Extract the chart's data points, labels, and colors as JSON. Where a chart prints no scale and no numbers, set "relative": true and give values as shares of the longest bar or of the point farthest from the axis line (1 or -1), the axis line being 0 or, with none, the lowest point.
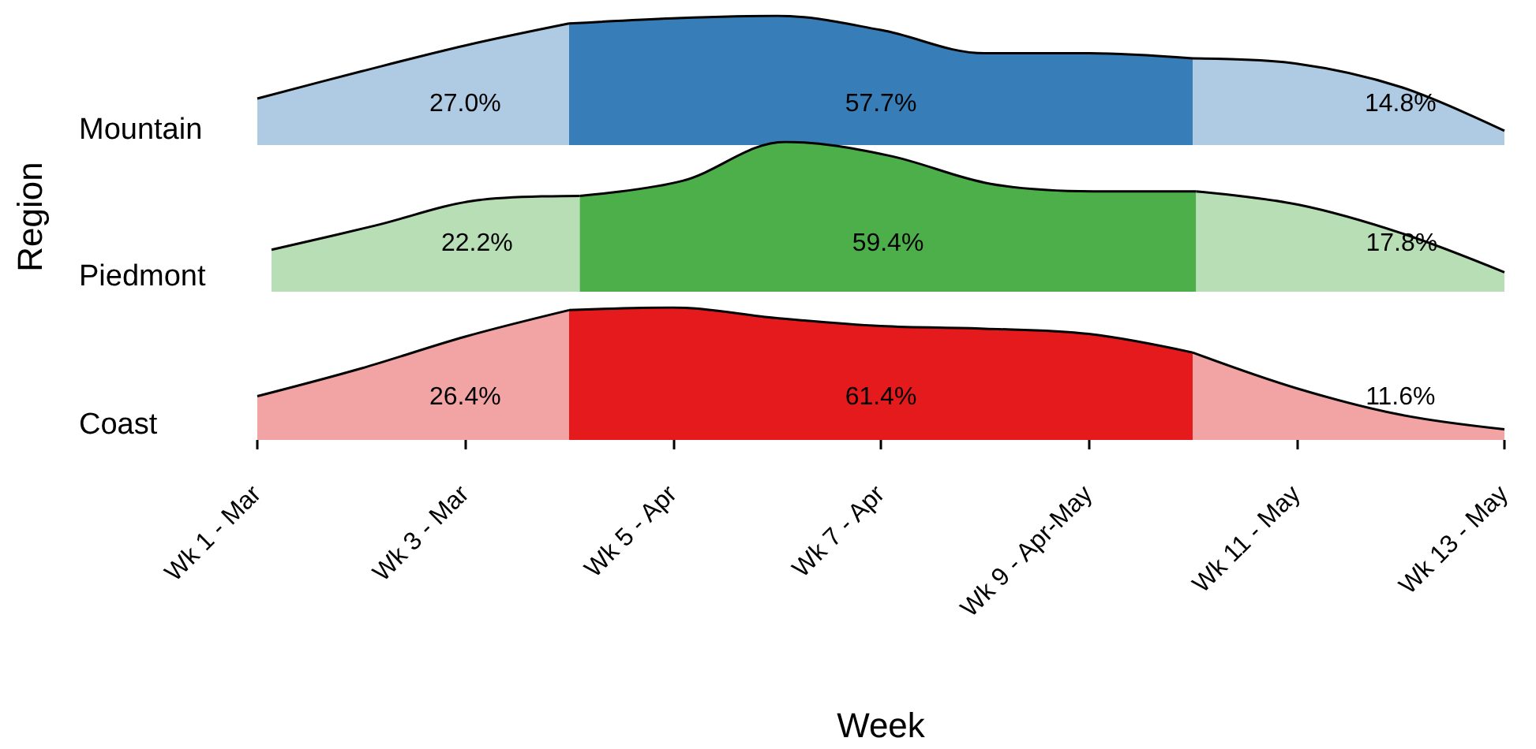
{
  "chart_data": [
    {
      "type": "area",
      "title": "Mountain",
      "relative": true,
      "tick_labels": false,
      "categories": [
        null,
        null,
        null,
        null,
        null,
        null,
        null,
        null,
        null,
        null,
        null,
        null,
        null
      ],
      "series": [
        {
          "color": "#aecbe3",
          "values": [
            0.36,
            0.57,
            0.77,
            0.94,
            null,
            null,
            null,
            null,
            null,
            null,
            null,
            null,
            null
          ]
        },
        {
          "color": "#377eb8",
          "values": [
            null,
            null,
            null,
            0.94,
            0.98,
            1,
            0.89,
            0.71,
            0.71,
            0.67,
            null,
            null,
            null
          ]
        },
        {
          "color": "#aecbe3",
          "values": [
            null,
            null,
            null,
            null,
            null,
            null,
            null,
            null,
            null,
            0.67,
            0.63,
            0.45,
            0.11
          ]
        }
      ],
      "annotations": [
        "27.0%",
        "57.7%",
        "14.8%"
      ]
    },
    {
      "type": "area",
      "title": "Piedmont",
      "ylabel": "Region",
      "relative": true,
      "tick_labels": false,
      "categories": [
        null,
        null,
        null,
        null,
        null,
        null,
        null,
        null,
        null,
        null,
        null,
        null,
        null
      ],
      "series": [
        {
          "color": "#b8deb5",
          "values": [
            0.28,
            0.44,
            0.61,
            0.64,
            null,
            null,
            null,
            null,
            null,
            null,
            null,
            null,
            null
          ]
        },
        {
          "color": "#4daf4a",
          "values": [
            null,
            null,
            null,
            0.64,
            0.74,
            1,
            0.91,
            0.72,
            0.67,
            0.67,
            null,
            null,
            null
          ]
        },
        {
          "color": "#b8deb5",
          "values": [
            null,
            null,
            null,
            null,
            null,
            null,
            null,
            null,
            null,
            0.67,
            0.58,
            0.39,
            0.13
          ]
        }
      ],
      "annotations": [
        "22.2%",
        "59.4%",
        "17.8%"
      ]
    },
    {
      "type": "area",
      "title": "Coast",
      "xlabel": "Week",
      "relative": true,
      "tick_labels": "x",
      "categories": [
        "Wk 1 - Mar",
        null,
        "Wk 3 - Mar",
        null,
        "Wk 5 - Apr",
        null,
        "Wk 7 - Apr",
        null,
        "Wk 9 - Apr-May",
        null,
        "Wk 11 - May",
        null,
        "Wk 13 - May"
      ],
      "series": [
        {
          "color": "#f2a4a5",
          "values": [
            0.33,
            0.54,
            0.78,
            0.98,
            null,
            null,
            null,
            null,
            null,
            null,
            null,
            null,
            null
          ]
        },
        {
          "color": "#e41a1c",
          "values": [
            null,
            null,
            null,
            0.98,
            1,
            0.92,
            0.86,
            0.84,
            0.8,
            0.66,
            null,
            null,
            null
          ]
        },
        {
          "color": "#f2a4a5",
          "values": [
            null,
            null,
            null,
            null,
            null,
            null,
            null,
            null,
            null,
            0.66,
            0.39,
            0.19,
            0.08
          ]
        }
      ],
      "annotations": [
        "26.4%",
        "61.4%",
        "11.6%"
      ]
    }
  ]
}
